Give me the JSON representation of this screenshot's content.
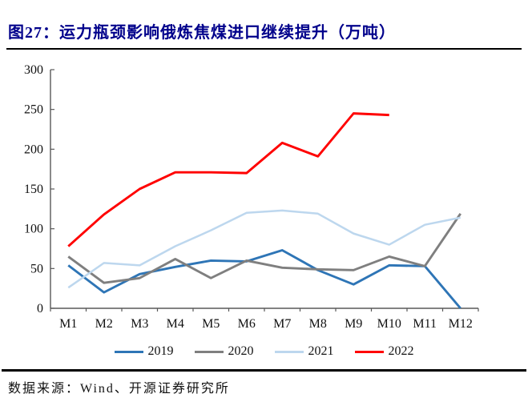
{
  "header": {
    "title": "图27：运力瓶颈影响俄炼焦煤进口继续提升（万吨）"
  },
  "footer": {
    "source": "数据来源：Wind、开源证券研究所"
  },
  "chart_data": {
    "type": "line",
    "title": "",
    "xlabel": "",
    "ylabel": "",
    "categories": [
      "M1",
      "M2",
      "M3",
      "M4",
      "M5",
      "M6",
      "M7",
      "M8",
      "M9",
      "M10",
      "M11",
      "M12"
    ],
    "series": [
      {
        "name": "2019",
        "color": "#2E75B6",
        "values": [
          54,
          20,
          43,
          52,
          60,
          59,
          73,
          48,
          30,
          54,
          53,
          0
        ]
      },
      {
        "name": "2020",
        "color": "#7F7F7F",
        "values": [
          65,
          32,
          38,
          62,
          38,
          60,
          51,
          49,
          48,
          65,
          53,
          119
        ]
      },
      {
        "name": "2021",
        "color": "#BDD7EE",
        "values": [
          26,
          57,
          54,
          78,
          98,
          120,
          123,
          119,
          94,
          80,
          105,
          114
        ]
      },
      {
        "name": "2022",
        "color": "#FF0000",
        "values": [
          78,
          118,
          150,
          171,
          171,
          170,
          208,
          191,
          245,
          243,
          null,
          null
        ]
      }
    ],
    "ylim": [
      0,
      300
    ],
    "ytick_step": 50,
    "grid": false,
    "legend_position": "bottom",
    "axis_color": "#595959"
  }
}
